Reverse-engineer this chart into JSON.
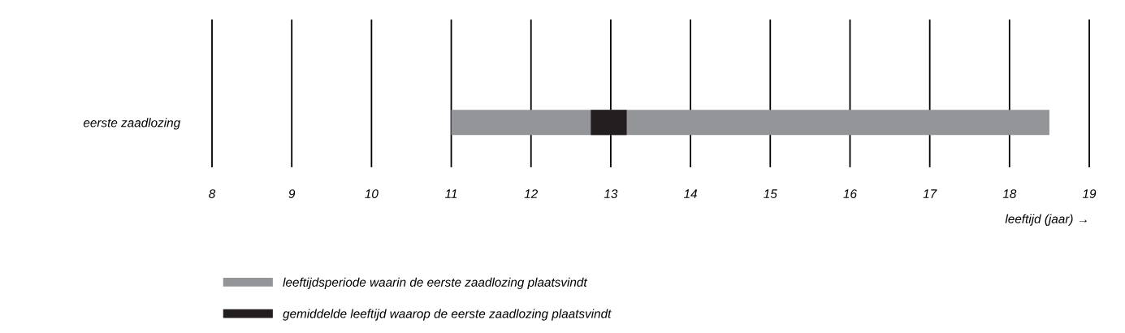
{
  "chart_data": {
    "type": "bar",
    "orientation": "horizontal",
    "categories": [
      "eerste zaadlozing"
    ],
    "series": [
      {
        "name": "leeftijdsperiode waarin de eerste zaadlozing plaatsvindt",
        "color": "#939598",
        "base": [
          11
        ],
        "values": [
          7.5
        ]
      },
      {
        "name": "gemiddelde leeftijd waarop de eerste zaadlozing plaatsvindt",
        "color": "#231f20",
        "base": [
          12.75
        ],
        "values": [
          0.45
        ]
      }
    ],
    "xlabel": "leeftijd (jaar) →",
    "xlim": [
      8,
      19
    ],
    "xticks": [
      8,
      9,
      10,
      11,
      12,
      13,
      14,
      15,
      16,
      17,
      18,
      19
    ],
    "grid": "x",
    "legend": "bottom"
  }
}
